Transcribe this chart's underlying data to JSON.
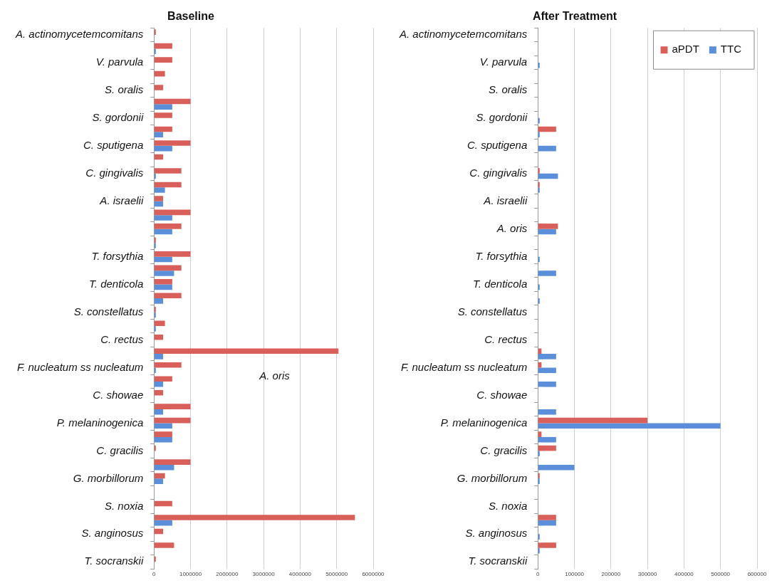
{
  "chart_data": [
    {
      "type": "bar",
      "orientation": "horizontal",
      "title": "Baseline",
      "categories": [
        "A. actinomycetemcomitans",
        null,
        "V. parvula",
        null,
        "S. oralis",
        null,
        "S. gordonii",
        null,
        "C. sputigena",
        null,
        "C. gingivalis",
        null,
        "A. israelii",
        null,
        null,
        null,
        "T. forsythia",
        null,
        "T. denticola",
        null,
        "S. constellatus",
        null,
        "C. rectus",
        null,
        "F. nucleatum ss nucleatum",
        null,
        "C. showae",
        null,
        "P. melaninogenica",
        null,
        "C. gracilis",
        null,
        "G. morbillorum",
        null,
        "S. noxia",
        null,
        "S. anginosus",
        null,
        "T. socranskii"
      ],
      "series": [
        {
          "color": "#d9605a",
          "values": [
            50000,
            500000,
            500000,
            300000,
            250000,
            1000000,
            500000,
            500000,
            1000000,
            250000,
            750000,
            750000,
            250000,
            1000000,
            750000,
            50000,
            1000000,
            750000,
            500000,
            750000,
            50000,
            300000,
            250000,
            5050000,
            750000,
            500000,
            250000,
            1000000,
            1000000,
            500000,
            50000,
            1000000,
            300000,
            10000,
            500000,
            5500000,
            250000,
            550000,
            50000
          ]
        },
        {
          "color": "#5b8fd9",
          "values": [
            0,
            50000,
            10000,
            10000,
            10000,
            500000,
            10000,
            250000,
            500000,
            0,
            50000,
            300000,
            250000,
            500000,
            500000,
            50000,
            500000,
            550000,
            500000,
            250000,
            50000,
            50000,
            10000,
            250000,
            50000,
            250000,
            10000,
            250000,
            500000,
            500000,
            10000,
            550000,
            250000,
            0,
            0,
            500000,
            10000,
            10000,
            10000
          ]
        }
      ],
      "xlim": [
        0,
        6000000
      ],
      "xticks": [
        0,
        1000000,
        2000000,
        3000000,
        4000000,
        5000000,
        6000000
      ],
      "grid": "x",
      "legend": false,
      "annotations": [
        "A. oris"
      ]
    },
    {
      "type": "bar",
      "orientation": "horizontal",
      "title": "After Treatment",
      "categories": [
        "A. actinomycetemcomitans",
        null,
        "V. parvula",
        null,
        "S. oralis",
        null,
        "S. gordonii",
        null,
        "C. sputigena",
        null,
        "C. gingivalis",
        null,
        "A. israelii",
        null,
        "A. oris",
        null,
        "T. forsythia",
        null,
        "T. denticola",
        null,
        "S. constellatus",
        null,
        "C. rectus",
        null,
        "F. nucleatum ss nucleatum",
        null,
        "C. showae",
        null,
        "P. melaninogenica",
        null,
        "C. gracilis",
        null,
        "G. morbillorum",
        null,
        "S. noxia",
        null,
        "S. anginosus",
        null,
        "T. socranskii"
      ],
      "series": [
        {
          "name": "aPDT",
          "color": "#d9605a",
          "values": [
            0,
            0,
            0,
            0,
            0,
            0,
            0,
            50000,
            0,
            0,
            5000,
            5000,
            0,
            0,
            55000,
            0,
            0,
            0,
            0,
            0,
            0,
            0,
            0,
            10000,
            10000,
            0,
            0,
            0,
            300000,
            10000,
            50000,
            0,
            5000,
            0,
            0,
            50000,
            0,
            50000,
            0
          ]
        },
        {
          "name": "TTC",
          "color": "#5b8fd9",
          "values": [
            0,
            0,
            5000,
            0,
            0,
            0,
            5000,
            5000,
            50000,
            0,
            55000,
            5000,
            0,
            0,
            50000,
            0,
            5000,
            50000,
            5000,
            5000,
            0,
            0,
            0,
            50000,
            50000,
            50000,
            0,
            50000,
            500000,
            50000,
            5000,
            100000,
            5000,
            0,
            0,
            50000,
            5000,
            5000,
            0
          ]
        }
      ],
      "xlim": [
        0,
        600000
      ],
      "xticks": [
        0,
        100000,
        200000,
        300000,
        400000,
        500000,
        600000
      ],
      "grid": "x",
      "legend": "top right"
    }
  ]
}
